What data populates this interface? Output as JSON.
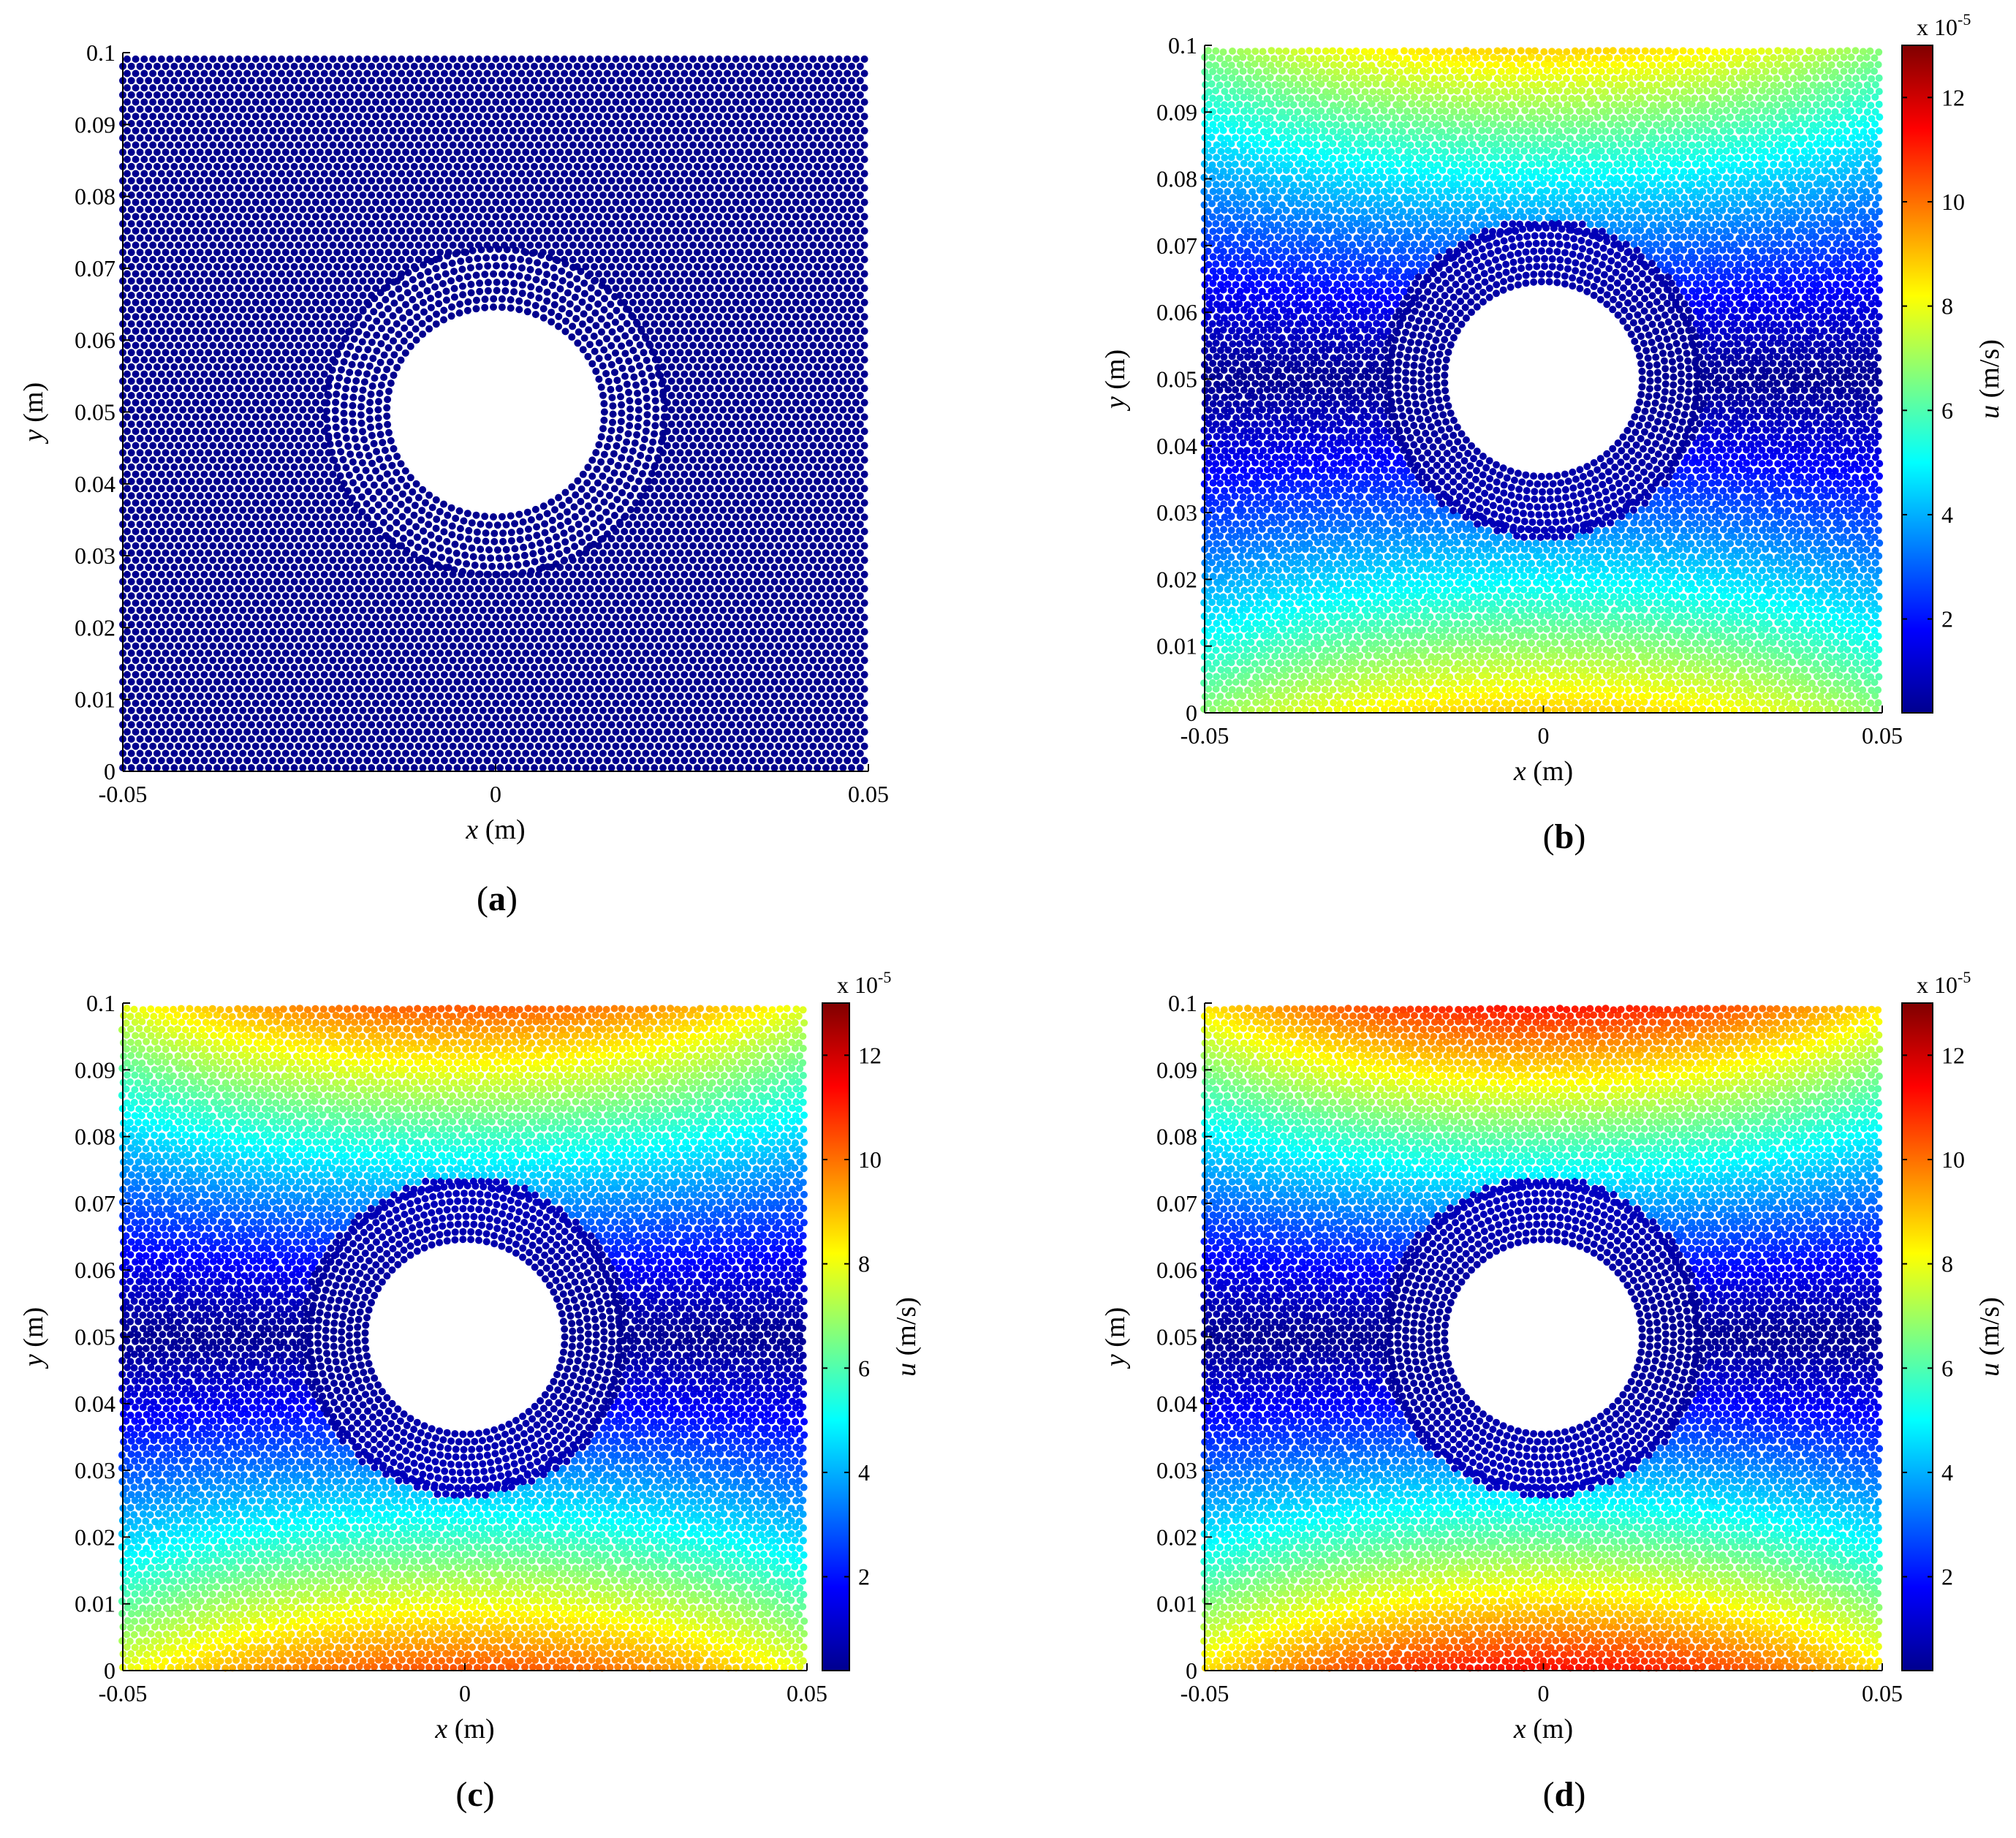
{
  "chart_data": [
    {
      "panel": "a",
      "type": "scatter",
      "title": "",
      "label_open": "(",
      "label_letter": "a",
      "label_close": ")",
      "xlabel_var": "x",
      "xlabel_unit": " (m)",
      "ylabel_var": "y",
      "ylabel_unit": " (m)",
      "xlim": [
        -0.05,
        0.05
      ],
      "ylim": [
        0,
        0.1
      ],
      "xticks": [
        "-0.05",
        "0",
        "0.05"
      ],
      "yticks": [
        "0",
        "0.01",
        "0.02",
        "0.03",
        "0.04",
        "0.05",
        "0.06",
        "0.07",
        "0.08",
        "0.09",
        "0.1"
      ],
      "hole": {
        "x": 0,
        "y": 0.05,
        "r": 0.014
      },
      "field_scale": 0,
      "colorbar": false,
      "point_color": "#00008f"
    },
    {
      "panel": "b",
      "type": "scatter",
      "title": "",
      "label_open": "(",
      "label_letter": "b",
      "label_close": ")",
      "xlabel_var": "x",
      "xlabel_unit": " (m)",
      "ylabel_var": "y",
      "ylabel_unit": " (m)",
      "xlim": [
        -0.05,
        0.05
      ],
      "ylim": [
        0,
        0.1
      ],
      "xticks": [
        "-0.05",
        "0",
        "0.05"
      ],
      "yticks": [
        "0",
        "0.01",
        "0.02",
        "0.03",
        "0.04",
        "0.05",
        "0.06",
        "0.07",
        "0.08",
        "0.09",
        "0.1"
      ],
      "hole": {
        "x": 0,
        "y": 0.05,
        "r": 0.014
      },
      "field_scale": 0.66,
      "colorbar": true,
      "colorbar_label_var": "u",
      "colorbar_label_unit": " (m/s)",
      "colorbar_exp_base": "x 10",
      "colorbar_exp": "-5",
      "colorbar_ticks": [
        "2",
        "4",
        "6",
        "8",
        "10",
        "12"
      ],
      "colorbar_range": [
        0.2,
        13
      ]
    },
    {
      "panel": "c",
      "type": "scatter",
      "title": "",
      "label_open": "(",
      "label_letter": "c",
      "label_close": ")",
      "xlabel_var": "x",
      "xlabel_unit": " (m)",
      "ylabel_var": "y",
      "ylabel_unit": " (m)",
      "xlim": [
        -0.05,
        0.05
      ],
      "ylim": [
        0,
        0.1
      ],
      "xticks": [
        "-0.05",
        "0",
        "0.05"
      ],
      "yticks": [
        "0",
        "0.01",
        "0.02",
        "0.03",
        "0.04",
        "0.05",
        "0.06",
        "0.07",
        "0.08",
        "0.09",
        "0.1"
      ],
      "hole": {
        "x": 0,
        "y": 0.05,
        "r": 0.014
      },
      "field_scale": 0.78,
      "colorbar": true,
      "colorbar_label_var": "u",
      "colorbar_label_unit": " (m/s)",
      "colorbar_exp_base": "x 10",
      "colorbar_exp": "-5",
      "colorbar_ticks": [
        "2",
        "4",
        "6",
        "8",
        "10",
        "12"
      ],
      "colorbar_range": [
        0.2,
        13
      ]
    },
    {
      "panel": "d",
      "type": "scatter",
      "title": "",
      "label_open": "(",
      "label_letter": "d",
      "label_close": ")",
      "xlabel_var": "x",
      "xlabel_unit": " (m)",
      "ylabel_var": "y",
      "ylabel_unit": " (m)",
      "xlim": [
        -0.05,
        0.05
      ],
      "ylim": [
        0,
        0.1
      ],
      "xticks": [
        "-0.05",
        "0",
        "0.05"
      ],
      "yticks": [
        "0",
        "0.01",
        "0.02",
        "0.03",
        "0.04",
        "0.05",
        "0.06",
        "0.07",
        "0.08",
        "0.09",
        "0.1"
      ],
      "hole": {
        "x": 0,
        "y": 0.05,
        "r": 0.014
      },
      "field_scale": 0.85,
      "colorbar": true,
      "colorbar_label_var": "u",
      "colorbar_label_unit": " (m/s)",
      "colorbar_exp_base": "x 10",
      "colorbar_exp": "-5",
      "colorbar_ticks": [
        "2",
        "4",
        "6",
        "8",
        "10",
        "12"
      ],
      "colorbar_range": [
        0.2,
        13
      ]
    }
  ]
}
